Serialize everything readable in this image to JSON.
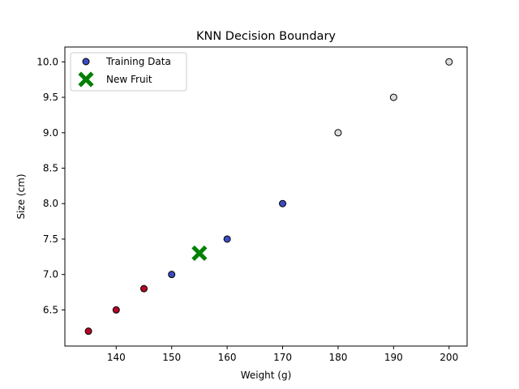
{
  "chart_data": {
    "type": "scatter",
    "title": "KNN Decision Boundary",
    "xlabel": "Weight (g)",
    "ylabel": "Size (cm)",
    "xlim": [
      130.75,
      203.25
    ],
    "ylim": [
      5.99,
      10.21
    ],
    "xticks": [
      140,
      150,
      160,
      170,
      180,
      190,
      200
    ],
    "yticks": [
      6.5,
      7.0,
      7.5,
      8.0,
      8.5,
      9.0,
      9.5,
      10.0
    ],
    "xtick_labels": [
      "140",
      "150",
      "160",
      "170",
      "180",
      "190",
      "200"
    ],
    "ytick_labels": [
      "6.5",
      "7.0",
      "7.5",
      "8.0",
      "8.5",
      "9.0",
      "9.5",
      "10.0"
    ],
    "grid": false,
    "legend": {
      "placement": "upper-left",
      "entries": [
        {
          "label": "Training Data",
          "marker": "circle",
          "color": "#3b4cc0"
        },
        {
          "label": "New Fruit",
          "marker": "x",
          "color": "#008000"
        }
      ]
    },
    "series": [
      {
        "name": "Training Data",
        "points": [
          {
            "x": 135,
            "y": 6.2,
            "color": "#b40426"
          },
          {
            "x": 140,
            "y": 6.5,
            "color": "#b40426"
          },
          {
            "x": 145,
            "y": 6.8,
            "color": "#b40426"
          },
          {
            "x": 150,
            "y": 7.0,
            "color": "#3b4cc0"
          },
          {
            "x": 160,
            "y": 7.5,
            "color": "#3b4cc0"
          },
          {
            "x": 170,
            "y": 8.0,
            "color": "#3b4cc0"
          },
          {
            "x": 180,
            "y": 9.0,
            "color": "#dddddd"
          },
          {
            "x": 190,
            "y": 9.5,
            "color": "#dddddd"
          },
          {
            "x": 200,
            "y": 10.0,
            "color": "#dddddd"
          }
        ]
      },
      {
        "name": "New Fruit",
        "points": [
          {
            "x": 155,
            "y": 7.3,
            "color": "#008000"
          }
        ]
      }
    ]
  }
}
